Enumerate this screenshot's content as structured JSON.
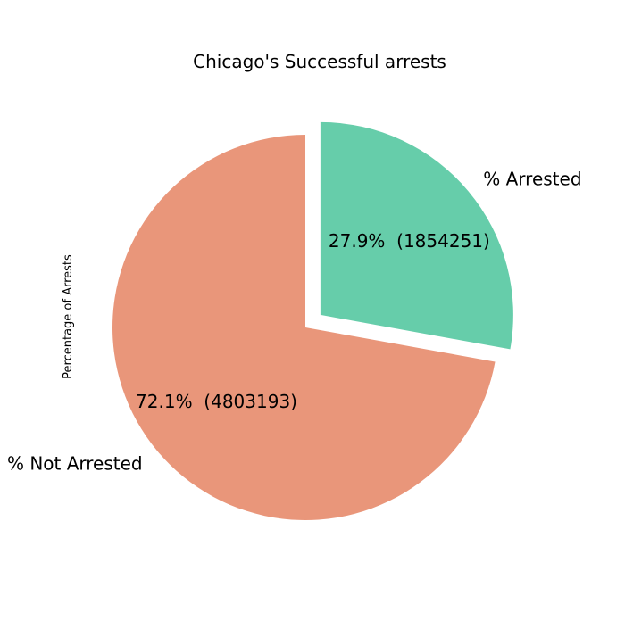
{
  "chart_data": {
    "type": "pie",
    "title": "Chicago's Successful arrests",
    "ylabel": "Percentage of Arrests",
    "slices": [
      {
        "label": "% Arrested",
        "value": 1854251,
        "percent_text": "27.9%",
        "count_text": "(1854251)",
        "color": "#66cdaa",
        "exploded": true
      },
      {
        "label": "% Not Arrested",
        "value": 4803193,
        "percent_text": "72.1%",
        "count_text": "(4803193)",
        "color": "#e9967a",
        "exploded": false
      }
    ],
    "start_angle_deg": 90,
    "direction": "clockwise"
  }
}
